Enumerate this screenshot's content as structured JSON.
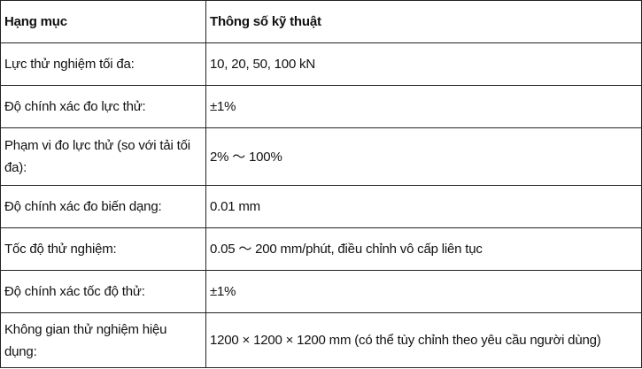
{
  "table": {
    "headers": [
      "Hạng mục",
      "Thông số kỹ thuật"
    ],
    "rows": [
      [
        "Lực thử nghiệm tối đa:",
        "10, 20, 50, 100 kN"
      ],
      [
        "Độ chính xác đo lực thử:",
        "±1%"
      ],
      [
        "Phạm vi đo lực thử (so với tải tối đa):",
        "2% ～ 100%"
      ],
      [
        "Độ chính xác đo biến dạng:",
        "0.01 mm"
      ],
      [
        "Tốc độ thử nghiệm:",
        "0.05 ～ 200 mm/phút, điều chỉnh vô cấp liên tục"
      ],
      [
        "Độ chính xác tốc độ thử:",
        "±1%"
      ],
      [
        "Không gian thử nghiệm hiệu dụng:",
        "1200 × 1200 × 1200 mm (có thể tùy chỉnh theo yêu cầu người dùng)"
      ]
    ]
  }
}
